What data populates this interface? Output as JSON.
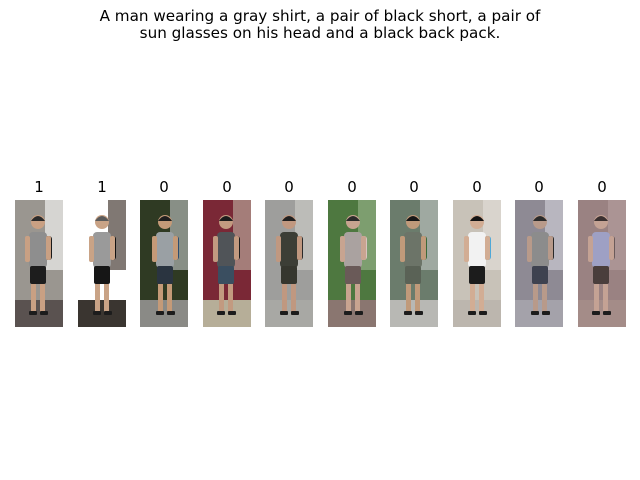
{
  "query": {
    "line1": "A man wearing a gray shirt, a pair of black short, a pair of",
    "line2": "sun glasses on his head and a black back pack."
  },
  "results": [
    {
      "label": "1",
      "bg": "#9a9690",
      "bg2": "#ffffff",
      "shirt": "#8e8e8e",
      "pants": "#1d1d1d",
      "skin": "#c9a083",
      "hair": "#2b2b2b",
      "ground": "#5a5250",
      "accent": "#1a1a1a"
    },
    {
      "label": "1",
      "bg": "#ffffff",
      "bg2": "#2c1e16",
      "shirt": "#9a9a9a",
      "pants": "#161616",
      "skin": "#c9a386",
      "hair": "#5b5b5b",
      "ground": "#3a3530",
      "accent": "#111111"
    },
    {
      "label": "0",
      "bg": "#2f3a23",
      "bg2": "#c4c8c8",
      "shirt": "#9aa0a4",
      "pants": "#2a3440",
      "skin": "#c49a78",
      "hair": "#1e1e1e",
      "ground": "#8a8a86",
      "accent": "#2d4d72"
    },
    {
      "label": "0",
      "bg": "#7a2836",
      "bg2": "#c0b6a6",
      "shirt": "#505458",
      "pants": "#3a4e60",
      "skin": "#c29a80",
      "hair": "#1b1b1b",
      "ground": "#b6ae98",
      "accent": "#1c1c1c"
    },
    {
      "label": "0",
      "bg": "#9e9e9c",
      "bg2": "#d0d0cc",
      "shirt": "#3c3e36",
      "pants": "#35362e",
      "skin": "#c09880",
      "hair": "#202020",
      "ground": "#a8a8a4",
      "accent": "#2a2a2a"
    },
    {
      "label": "0",
      "bg": "#4e7840",
      "bg2": "#9cb890",
      "shirt": "#aaa2a0",
      "pants": "#6a5a58",
      "skin": "#c8a490",
      "hair": "#2a2a2a",
      "ground": "#8a7670",
      "accent": "#d8c4c0"
    },
    {
      "label": "0",
      "bg": "#6b7c6c",
      "bg2": "#c2c8c4",
      "shirt": "#6c7468",
      "pants": "#5a6256",
      "skin": "#c09a7a",
      "hair": "#161616",
      "ground": "#b8b8b4",
      "accent": "#3b6a3a"
    },
    {
      "label": "0",
      "bg": "#c8c2b8",
      "bg2": "#e4e0da",
      "shirt": "#f2f2f2",
      "pants": "#1c1c1c",
      "skin": "#d2ad94",
      "hair": "#141414",
      "ground": "#bcb6ae",
      "accent": "#4fa8d8"
    },
    {
      "label": "0",
      "bg": "#8e8a94",
      "bg2": "#d4d4dc",
      "shirt": "#8c8c8c",
      "pants": "#3e4250",
      "skin": "#b89a8a",
      "hair": "#2a2a2a",
      "ground": "#a4a2aa",
      "accent": "#2a2a2a"
    },
    {
      "label": "0",
      "bg": "#9a8282",
      "bg2": "#b8a0a0",
      "shirt": "#9ea0c4",
      "pants": "#4a3e3c",
      "skin": "#c4a294",
      "hair": "#3a3030",
      "ground": "#a48c88",
      "accent": "#6a5a5a"
    }
  ]
}
